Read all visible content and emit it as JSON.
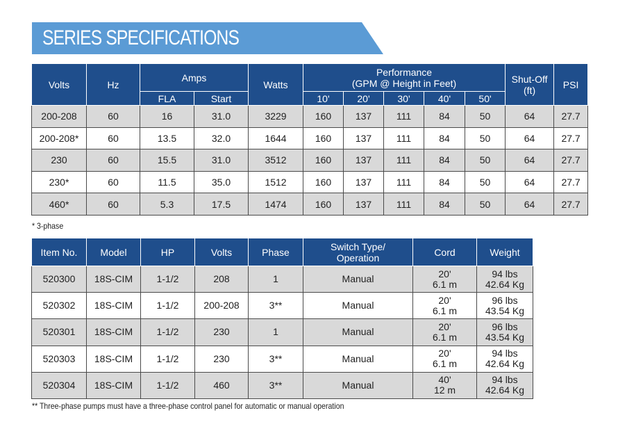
{
  "page_title": "SERIES SPECIFICATIONS",
  "spec_table": {
    "headers": {
      "volts": "Volts",
      "hz": "Hz",
      "amps": "Amps",
      "fla": "FLA",
      "start": "Start",
      "watts": "Watts",
      "performance_line1": "Performance",
      "performance_line2": "(GPM @ Height in Feet)",
      "heights": [
        "10'",
        "20'",
        "30'",
        "40'",
        "50'"
      ],
      "shutoff_line1": "Shut-Off",
      "shutoff_line2": "(ft)",
      "psi": "PSI"
    },
    "rows": [
      [
        "200-208",
        "60",
        "16",
        "31.0",
        "3229",
        "160",
        "137",
        "111",
        "84",
        "50",
        "64",
        "27.7"
      ],
      [
        "200-208*",
        "60",
        "13.5",
        "32.0",
        "1644",
        "160",
        "137",
        "111",
        "84",
        "50",
        "64",
        "27.7"
      ],
      [
        "230",
        "60",
        "15.5",
        "31.0",
        "3512",
        "160",
        "137",
        "111",
        "84",
        "50",
        "64",
        "27.7"
      ],
      [
        "230*",
        "60",
        "11.5",
        "35.0",
        "1512",
        "160",
        "137",
        "111",
        "84",
        "50",
        "64",
        "27.7"
      ],
      [
        "460*",
        "60",
        "5.3",
        "17.5",
        "1474",
        "160",
        "137",
        "111",
        "84",
        "50",
        "64",
        "27.7"
      ]
    ],
    "footnote": "* 3-phase"
  },
  "model_table": {
    "headers": {
      "item_no": "Item No.",
      "model": "Model",
      "hp": "HP",
      "volts": "Volts",
      "phase": "Phase",
      "switch_line1": "Switch Type/",
      "switch_line2": "Operation",
      "cord": "Cord",
      "weight": "Weight"
    },
    "rows": [
      {
        "item": "520300",
        "model": "18S-CIM",
        "hp": "1-1/2",
        "volts": "208",
        "phase": "1",
        "switch": "Manual",
        "cord_ft": "20'",
        "cord_m": "6.1 m",
        "weight_lbs": "94 lbs",
        "weight_kg": "42.64 Kg"
      },
      {
        "item": "520302",
        "model": "18S-CIM",
        "hp": "1-1/2",
        "volts": "200-208",
        "phase": "3**",
        "switch": "Manual",
        "cord_ft": "20'",
        "cord_m": "6.1 m",
        "weight_lbs": "96 lbs",
        "weight_kg": "43.54 Kg"
      },
      {
        "item": "520301",
        "model": "18S-CIM",
        "hp": "1-1/2",
        "volts": "230",
        "phase": "1",
        "switch": "Manual",
        "cord_ft": "20'",
        "cord_m": "6.1 m",
        "weight_lbs": "96 lbs",
        "weight_kg": "43.54 Kg"
      },
      {
        "item": "520303",
        "model": "18S-CIM",
        "hp": "1-1/2",
        "volts": "230",
        "phase": "3**",
        "switch": "Manual",
        "cord_ft": "20'",
        "cord_m": "6.1 m",
        "weight_lbs": "94 lbs",
        "weight_kg": "42.64 Kg"
      },
      {
        "item": "520304",
        "model": "18S-CIM",
        "hp": "1-1/2",
        "volts": "460",
        "phase": "3**",
        "switch": "Manual",
        "cord_ft": "40'",
        "cord_m": "12 m",
        "weight_lbs": "94 lbs",
        "weight_kg": "42.64 Kg"
      }
    ],
    "footnote": "** Three-phase pumps must have a three-phase control panel for automatic or manual operation"
  },
  "colors": {
    "banner": "#5b9bd5",
    "header": "#1f4e8c",
    "shaded_row": "#d9d9d9"
  }
}
